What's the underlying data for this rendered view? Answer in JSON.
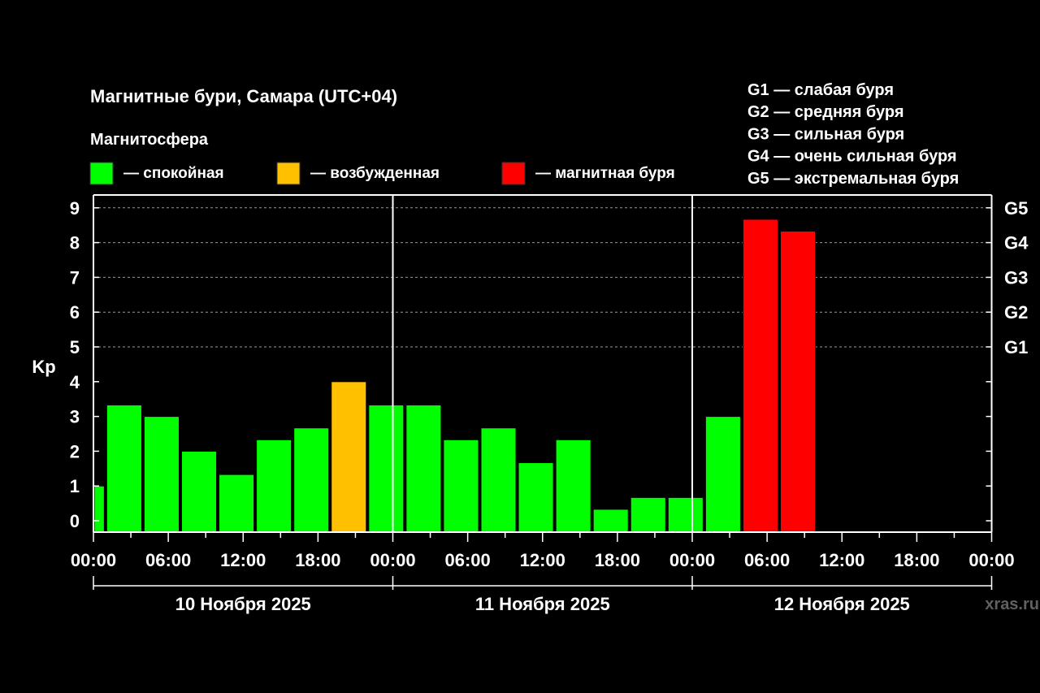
{
  "chart_data": {
    "type": "bar",
    "title": "Магнитные бури, Самара (UTC+04)",
    "legend_heading": "Магнитосфера",
    "legend": [
      {
        "label": "— спокойная",
        "color": "#00ff00"
      },
      {
        "label": "— возбужденная",
        "color": "#ffc000"
      },
      {
        "label": "— магнитная буря",
        "color": "#ff0000"
      }
    ],
    "scale_legend": [
      "G1 — слабая буря",
      "G2 — средняя буря",
      "G3 — сильная буря",
      "G4 — очень сильная буря",
      "G5 — экстремальная буря"
    ],
    "ylabel": "Kp",
    "ylim": [
      0,
      9
    ],
    "y_ticks": [
      "0",
      "1",
      "2",
      "3",
      "4",
      "5",
      "6",
      "7",
      "8",
      "9"
    ],
    "right_ticks": [
      {
        "value": 5,
        "label": "G1"
      },
      {
        "value": 6,
        "label": "G2"
      },
      {
        "value": 7,
        "label": "G3"
      },
      {
        "value": 8,
        "label": "G4"
      },
      {
        "value": 9,
        "label": "G5"
      }
    ],
    "grid": "dashed horizontal lines at Kp 5–9",
    "x_tick_labels": [
      "00:00",
      "06:00",
      "12:00",
      "18:00",
      "00:00",
      "06:00",
      "12:00",
      "18:00",
      "00:00",
      "06:00",
      "12:00",
      "18:00",
      "00:00"
    ],
    "days": [
      "10 Ноября 2025",
      "11 Ноября 2025",
      "12 Ноября 2025"
    ],
    "bars": [
      {
        "day": 0,
        "start_hour": 0,
        "end_hour": 1,
        "value": 1.0,
        "color": "#00ff00"
      },
      {
        "day": 0,
        "start_hour": 1,
        "end_hour": 4,
        "value": 3.33,
        "color": "#00ff00"
      },
      {
        "day": 0,
        "start_hour": 4,
        "end_hour": 7,
        "value": 3.0,
        "color": "#00ff00"
      },
      {
        "day": 0,
        "start_hour": 7,
        "end_hour": 10,
        "value": 2.0,
        "color": "#00ff00"
      },
      {
        "day": 0,
        "start_hour": 10,
        "end_hour": 13,
        "value": 1.33,
        "color": "#00ff00"
      },
      {
        "day": 0,
        "start_hour": 13,
        "end_hour": 16,
        "value": 2.33,
        "color": "#00ff00"
      },
      {
        "day": 0,
        "start_hour": 16,
        "end_hour": 19,
        "value": 2.67,
        "color": "#00ff00"
      },
      {
        "day": 0,
        "start_hour": 19,
        "end_hour": 22,
        "value": 4.0,
        "color": "#ffc000"
      },
      {
        "day": 0,
        "start_hour": 22,
        "end_hour": 25,
        "value": 3.33,
        "color": "#00ff00"
      },
      {
        "day": 1,
        "start_hour": 1,
        "end_hour": 4,
        "value": 3.33,
        "color": "#00ff00"
      },
      {
        "day": 1,
        "start_hour": 4,
        "end_hour": 7,
        "value": 2.33,
        "color": "#00ff00"
      },
      {
        "day": 1,
        "start_hour": 7,
        "end_hour": 10,
        "value": 2.67,
        "color": "#00ff00"
      },
      {
        "day": 1,
        "start_hour": 10,
        "end_hour": 13,
        "value": 1.67,
        "color": "#00ff00"
      },
      {
        "day": 1,
        "start_hour": 13,
        "end_hour": 16,
        "value": 2.33,
        "color": "#00ff00"
      },
      {
        "day": 1,
        "start_hour": 16,
        "end_hour": 19,
        "value": 0.33,
        "color": "#00ff00"
      },
      {
        "day": 1,
        "start_hour": 19,
        "end_hour": 22,
        "value": 0.67,
        "color": "#00ff00"
      },
      {
        "day": 1,
        "start_hour": 22,
        "end_hour": 25,
        "value": 0.67,
        "color": "#00ff00"
      },
      {
        "day": 2,
        "start_hour": 1,
        "end_hour": 4,
        "value": 3.0,
        "color": "#00ff00"
      },
      {
        "day": 2,
        "start_hour": 4,
        "end_hour": 7,
        "value": 8.67,
        "color": "#ff0000"
      },
      {
        "day": 2,
        "start_hour": 7,
        "end_hour": 10,
        "value": 8.33,
        "color": "#ff0000"
      }
    ],
    "watermark": "xras.ru"
  }
}
